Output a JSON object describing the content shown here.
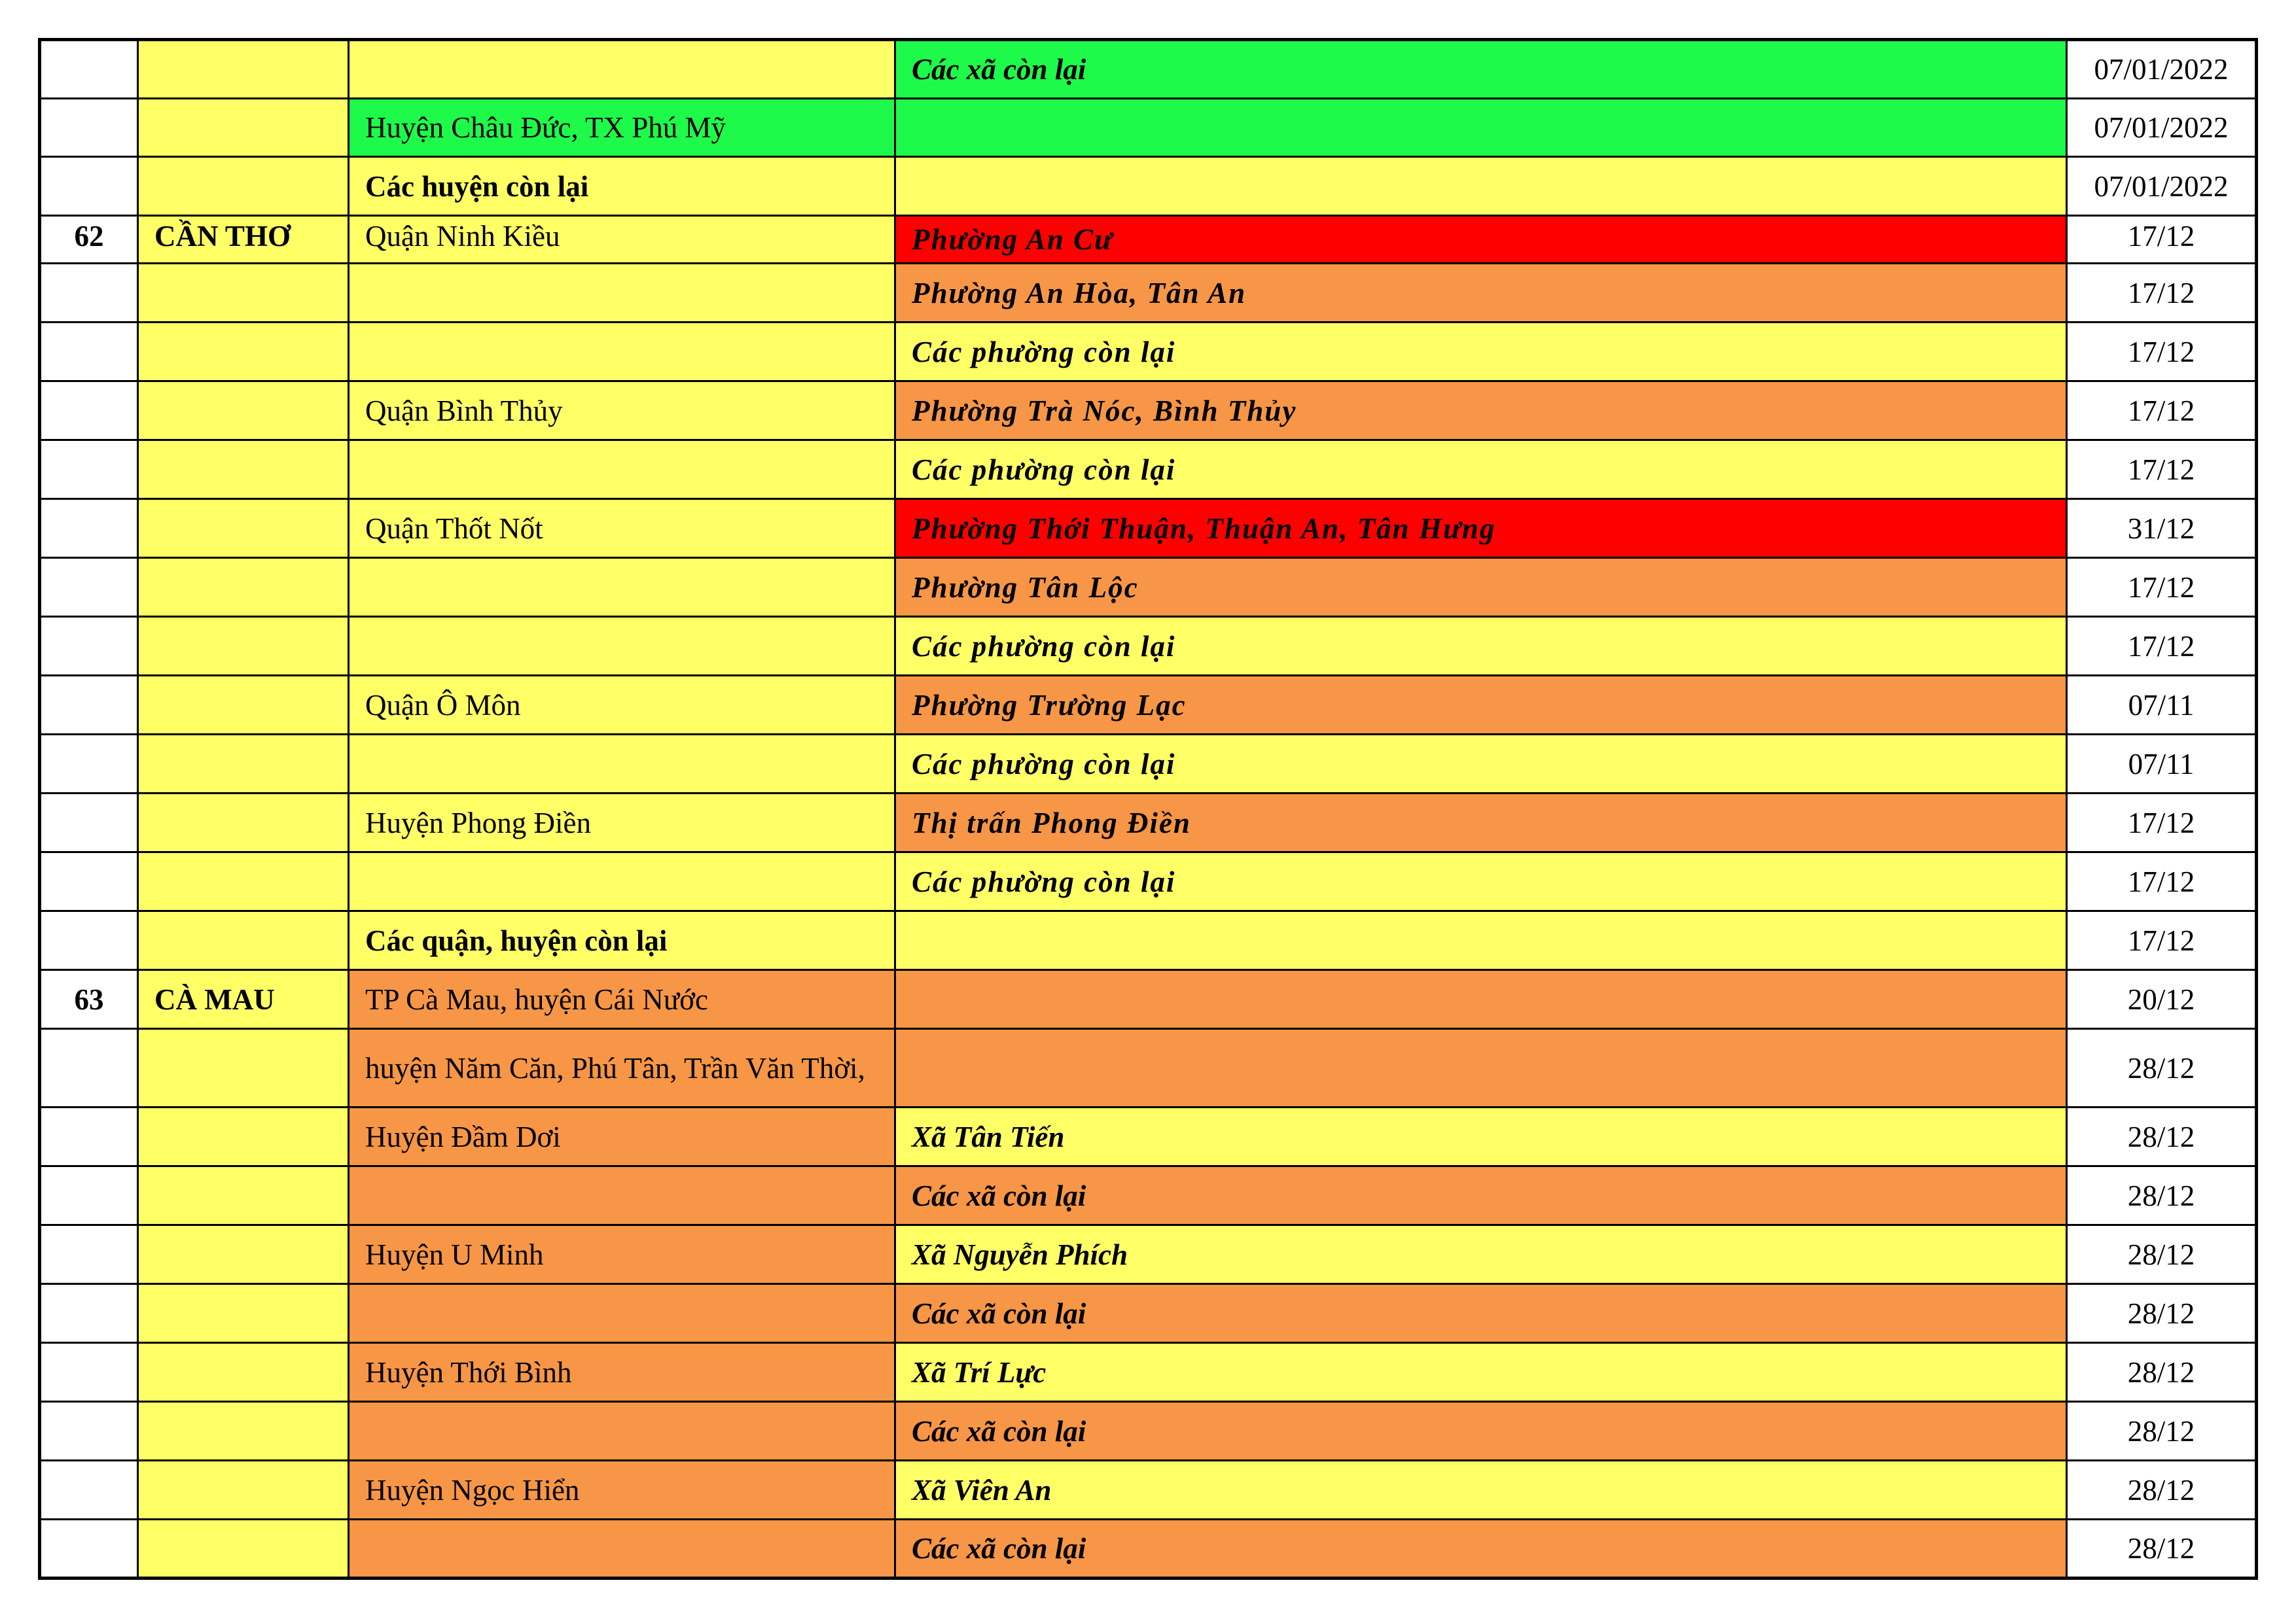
{
  "colors": {
    "yellow": "#FFFF66",
    "green": "#1EFA4A",
    "red": "#FF0000",
    "orange": "#F79646",
    "white": "#FFFFFF"
  },
  "rows": [
    {
      "num": "",
      "province": "",
      "district": "",
      "district_bold": false,
      "district_bg": "yellow",
      "ward": "Các xã còn lại",
      "ward_bg": "green",
      "date": "07/01/2022"
    },
    {
      "num": "",
      "province": "",
      "district": "Huyện Châu Đức, TX Phú Mỹ",
      "district_bold": false,
      "district_bg": "green",
      "ward": "",
      "ward_bg": "green",
      "date": "07/01/2022"
    },
    {
      "num": "",
      "province": "",
      "district": "Các huyện còn lại",
      "district_bold": true,
      "district_bg": "yellow",
      "ward": "",
      "ward_bg": "yellow",
      "date": "07/01/2022"
    },
    {
      "num": "62",
      "province": "CẦN THƠ",
      "district": "Quận Ninh Kiều",
      "district_bold": false,
      "district_bg": "yellow",
      "ward": "Phường An Cư",
      "ward_bg": "red",
      "date": "17/12"
    },
    {
      "num": "",
      "province": "",
      "district": "",
      "district_bold": false,
      "district_bg": "yellow",
      "ward": "Phường An Hòa, Tân An",
      "ward_bg": "orange",
      "date": "17/12"
    },
    {
      "num": "",
      "province": "",
      "district": "",
      "district_bold": false,
      "district_bg": "yellow",
      "ward": "Các phường còn lại",
      "ward_bg": "yellow",
      "date": "17/12"
    },
    {
      "num": "",
      "province": "",
      "district": "Quận Bình Thủy",
      "district_bold": false,
      "district_bg": "yellow",
      "ward": "Phường Trà Nóc, Bình Thủy",
      "ward_bg": "orange",
      "date": "17/12"
    },
    {
      "num": "",
      "province": "",
      "district": "",
      "district_bold": false,
      "district_bg": "yellow",
      "ward": "Các phường còn lại",
      "ward_bg": "yellow",
      "date": "17/12"
    },
    {
      "num": "",
      "province": "",
      "district": "Quận Thốt Nốt",
      "district_bold": false,
      "district_bg": "yellow",
      "ward": "Phường Thới Thuận, Thuận An, Tân Hưng",
      "ward_bg": "red",
      "date": "31/12"
    },
    {
      "num": "",
      "province": "",
      "district": "",
      "district_bold": false,
      "district_bg": "yellow",
      "ward": "Phường Tân Lộc",
      "ward_bg": "orange",
      "date": "17/12"
    },
    {
      "num": "",
      "province": "",
      "district": "",
      "district_bold": false,
      "district_bg": "yellow",
      "ward": "Các phường còn lại",
      "ward_bg": "yellow",
      "date": "17/12"
    },
    {
      "num": "",
      "province": "",
      "district": "Quận Ô Môn",
      "district_bold": false,
      "district_bg": "yellow",
      "ward": "Phường Trường Lạc",
      "ward_bg": "orange",
      "date": "07/11"
    },
    {
      "num": "",
      "province": "",
      "district": "",
      "district_bold": false,
      "district_bg": "yellow",
      "ward": "Các phường còn lại",
      "ward_bg": "yellow",
      "date": "07/11"
    },
    {
      "num": "",
      "province": "",
      "district": "Huyện Phong Điền",
      "district_bold": false,
      "district_bg": "yellow",
      "ward": "Thị trấn Phong Điền",
      "ward_bg": "orange",
      "date": "17/12"
    },
    {
      "num": "",
      "province": "",
      "district": "",
      "district_bold": false,
      "district_bg": "yellow",
      "ward": "Các phường còn lại",
      "ward_bg": "yellow",
      "date": "17/12"
    },
    {
      "num": "",
      "province": "",
      "district": "Các quận, huyện còn lại",
      "district_bold": true,
      "district_bg": "yellow",
      "ward": "",
      "ward_bg": "yellow",
      "date": "17/12"
    },
    {
      "num": "63",
      "province": "CÀ MAU",
      "district": "TP Cà Mau, huyện Cái Nước",
      "district_bold": false,
      "district_bg": "orange",
      "ward": "",
      "ward_bg": "orange",
      "date": "20/12"
    },
    {
      "num": "",
      "province": "",
      "district": "huyện Năm Căn, Phú Tân, Trần Văn Thời,",
      "district_bold": false,
      "district_bg": "orange",
      "ward": "",
      "ward_bg": "orange",
      "date": "28/12"
    },
    {
      "num": "",
      "province": "",
      "district": "Huyện Đầm Dơi",
      "district_bold": false,
      "district_bg": "orange",
      "ward": "Xã Tân Tiến",
      "ward_bg": "yellow",
      "date": "28/12"
    },
    {
      "num": "",
      "province": "",
      "district": "",
      "district_bold": false,
      "district_bg": "orange",
      "ward": "Các xã còn lại",
      "ward_bg": "orange",
      "date": "28/12"
    },
    {
      "num": "",
      "province": "",
      "district": "Huyện U Minh",
      "district_bold": false,
      "district_bg": "orange",
      "ward": "Xã Nguyễn Phích",
      "ward_bg": "yellow",
      "date": "28/12"
    },
    {
      "num": "",
      "province": "",
      "district": "",
      "district_bold": false,
      "district_bg": "orange",
      "ward": "Các xã còn lại",
      "ward_bg": "orange",
      "date": "28/12"
    },
    {
      "num": "",
      "province": "",
      "district": "Huyện Thới Bình",
      "district_bold": false,
      "district_bg": "orange",
      "ward": "Xã Trí Lực",
      "ward_bg": "yellow",
      "date": "28/12"
    },
    {
      "num": "",
      "province": "",
      "district": "",
      "district_bold": false,
      "district_bg": "orange",
      "ward": "Các xã còn lại",
      "ward_bg": "orange",
      "date": "28/12"
    },
    {
      "num": "",
      "province": "",
      "district": "Huyện Ngọc Hiển",
      "district_bold": false,
      "district_bg": "orange",
      "ward": "Xã Viên An",
      "ward_bg": "yellow",
      "date": "28/12"
    },
    {
      "num": "",
      "province": "",
      "district": "",
      "district_bold": false,
      "district_bg": "orange",
      "ward": "Các xã còn lại",
      "ward_bg": "orange",
      "date": "28/12"
    }
  ]
}
